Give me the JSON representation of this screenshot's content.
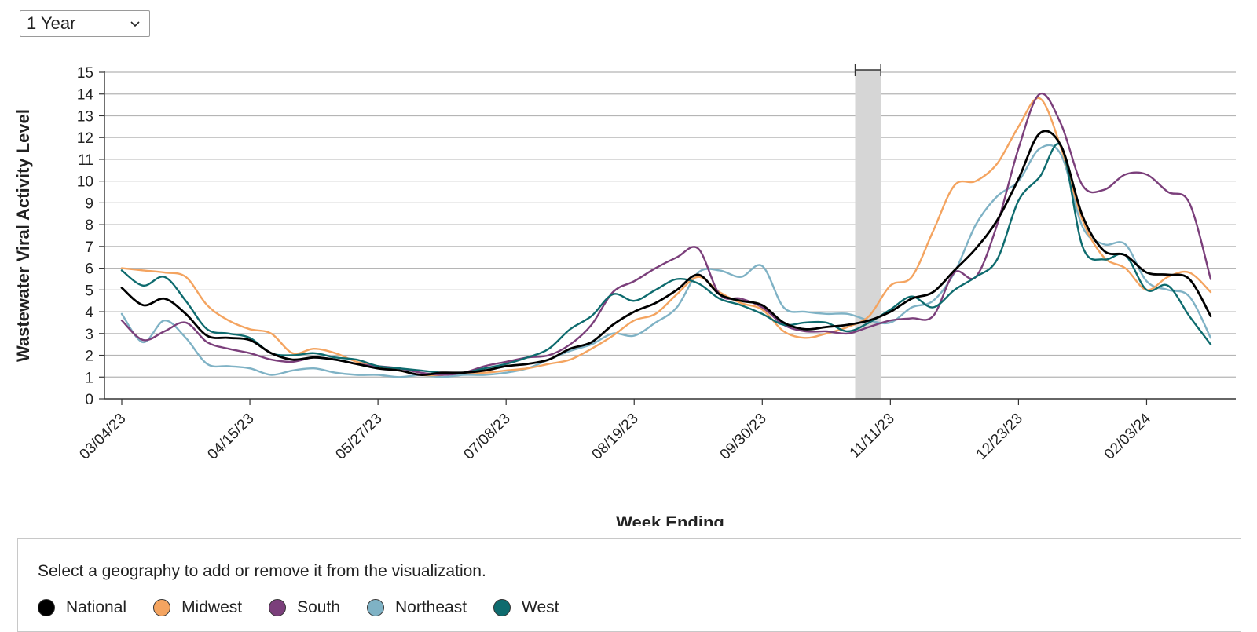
{
  "range_select": {
    "value": "1 Year"
  },
  "legend": {
    "instruction": "Select a geography to add or remove it from the visualization.",
    "items": [
      {
        "label": "National",
        "color": "#000000"
      },
      {
        "label": "Midwest",
        "color": "#f4a460"
      },
      {
        "label": "South",
        "color": "#7b3f7b"
      },
      {
        "label": "Northeast",
        "color": "#7fb2c5"
      },
      {
        "label": "West",
        "color": "#0e6b6e"
      }
    ]
  },
  "chart_data": {
    "type": "line",
    "xlabel": "Week Ending",
    "ylabel": "Wastewater Viral Activity Level",
    "ylim": [
      0,
      15
    ],
    "yticks": [
      0,
      1,
      2,
      3,
      4,
      5,
      6,
      7,
      8,
      9,
      10,
      11,
      12,
      13,
      14,
      15
    ],
    "xtick_labels": [
      "03/04/23",
      "04/15/23",
      "05/27/23",
      "07/08/23",
      "08/19/23",
      "09/30/23",
      "11/11/23",
      "12/23/23",
      "02/03/24"
    ],
    "highlight_weeks": [
      34,
      36
    ],
    "grid": true,
    "x": [
      "03/04/23",
      "03/11/23",
      "03/18/23",
      "03/25/23",
      "04/01/23",
      "04/08/23",
      "04/15/23",
      "04/22/23",
      "04/29/23",
      "05/06/23",
      "05/13/23",
      "05/20/23",
      "05/27/23",
      "06/03/23",
      "06/10/23",
      "06/17/23",
      "06/24/23",
      "07/01/23",
      "07/08/23",
      "07/15/23",
      "07/22/23",
      "07/29/23",
      "08/05/23",
      "08/12/23",
      "08/19/23",
      "08/26/23",
      "09/02/23",
      "09/09/23",
      "09/16/23",
      "09/23/23",
      "09/30/23",
      "10/07/23",
      "10/14/23",
      "10/21/23",
      "10/28/23",
      "11/04/23",
      "11/11/23",
      "11/18/23",
      "11/25/23",
      "12/02/23",
      "12/09/23",
      "12/16/23",
      "12/23/23",
      "12/30/23",
      "01/06/24",
      "01/13/24",
      "01/20/24",
      "01/27/24",
      "02/03/24",
      "02/10/24",
      "02/17/24",
      "02/24/24"
    ],
    "series": [
      {
        "name": "National",
        "color": "#000000",
        "values": [
          5.1,
          4.3,
          4.6,
          3.9,
          2.9,
          2.8,
          2.7,
          2.1,
          1.8,
          1.9,
          1.8,
          1.6,
          1.4,
          1.3,
          1.1,
          1.2,
          1.2,
          1.3,
          1.5,
          1.6,
          1.8,
          2.3,
          2.6,
          3.4,
          4.0,
          4.4,
          5.0,
          5.7,
          4.8,
          4.5,
          4.3,
          3.5,
          3.2,
          3.3,
          3.4,
          3.6,
          4.0,
          4.6,
          4.9,
          5.9,
          6.9,
          8.2,
          10.1,
          12.2,
          11.6,
          8.4,
          6.8,
          6.6,
          5.8,
          5.7,
          5.5,
          3.8
        ]
      },
      {
        "name": "Midwest",
        "color": "#f4a460",
        "values": [
          6.0,
          5.9,
          5.8,
          5.6,
          4.3,
          3.6,
          3.2,
          3.0,
          2.1,
          2.3,
          2.1,
          1.7,
          1.5,
          1.3,
          1.1,
          1.1,
          1.2,
          1.2,
          1.3,
          1.4,
          1.6,
          1.8,
          2.3,
          2.9,
          3.6,
          3.9,
          4.8,
          5.6,
          4.9,
          4.4,
          4.1,
          3.1,
          2.8,
          3.0,
          3.3,
          3.8,
          5.2,
          5.6,
          7.7,
          9.8,
          10.0,
          10.8,
          12.5,
          13.8,
          11.5,
          8.2,
          6.5,
          6.0,
          5.0,
          5.6,
          5.8,
          4.9
        ]
      },
      {
        "name": "South",
        "color": "#7b3f7b",
        "values": [
          3.6,
          2.7,
          3.1,
          3.5,
          2.6,
          2.3,
          2.1,
          1.8,
          1.7,
          1.9,
          1.8,
          1.6,
          1.5,
          1.4,
          1.2,
          1.1,
          1.2,
          1.5,
          1.7,
          1.9,
          2.0,
          2.5,
          3.4,
          4.9,
          5.4,
          6.0,
          6.5,
          6.9,
          4.8,
          4.6,
          4.2,
          3.4,
          3.1,
          3.1,
          3.0,
          3.3,
          3.6,
          3.7,
          3.8,
          5.8,
          5.6,
          8.0,
          11.5,
          14.0,
          12.6,
          9.8,
          9.6,
          10.3,
          10.3,
          9.5,
          9.0,
          5.5
        ]
      },
      {
        "name": "Northeast",
        "color": "#7fb2c5",
        "values": [
          3.9,
          2.6,
          3.6,
          2.8,
          1.6,
          1.5,
          1.4,
          1.1,
          1.3,
          1.4,
          1.2,
          1.1,
          1.1,
          1.0,
          1.1,
          1.0,
          1.1,
          1.1,
          1.2,
          1.4,
          1.8,
          2.2,
          2.5,
          3.0,
          2.9,
          3.5,
          4.2,
          5.8,
          5.9,
          5.6,
          6.1,
          4.2,
          4.0,
          3.9,
          3.9,
          3.6,
          3.5,
          4.2,
          4.5,
          5.8,
          8.0,
          9.3,
          10.0,
          11.5,
          11.2,
          7.9,
          7.1,
          7.1,
          5.4,
          5.0,
          4.7,
          2.8
        ]
      },
      {
        "name": "West",
        "color": "#0e6b6e",
        "values": [
          5.9,
          5.2,
          5.6,
          4.5,
          3.2,
          3.0,
          2.8,
          2.1,
          2.0,
          2.1,
          1.9,
          1.8,
          1.5,
          1.4,
          1.3,
          1.2,
          1.2,
          1.4,
          1.6,
          1.9,
          2.3,
          3.2,
          3.8,
          4.8,
          4.5,
          5.0,
          5.5,
          5.3,
          4.6,
          4.3,
          3.9,
          3.4,
          3.5,
          3.5,
          3.1,
          3.5,
          4.1,
          4.7,
          4.2,
          5.0,
          5.6,
          6.4,
          9.1,
          10.2,
          11.6,
          7.0,
          6.4,
          6.6,
          5.0,
          5.2,
          3.8,
          2.5
        ]
      }
    ]
  }
}
